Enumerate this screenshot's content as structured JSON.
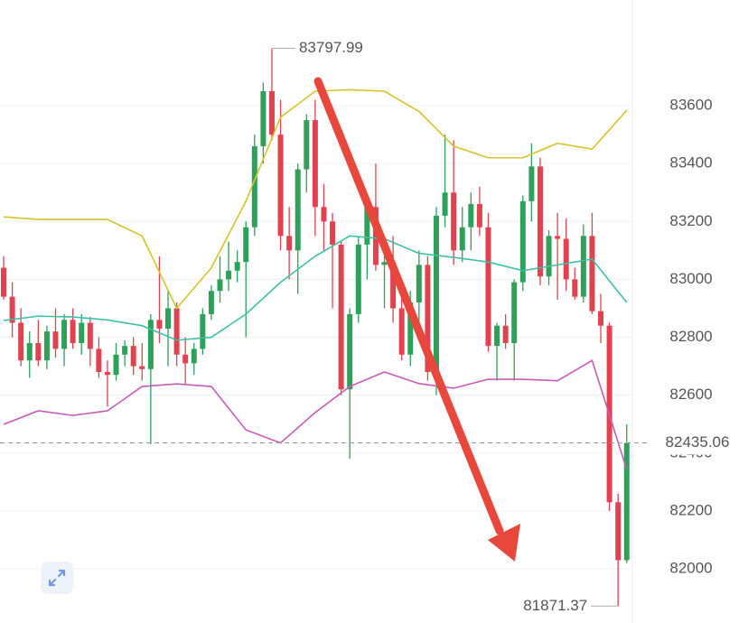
{
  "chart_data": {
    "type": "candlestick",
    "ylim": [
      81813,
      83965
    ],
    "yticks": [
      82000,
      82200,
      82400,
      82600,
      82800,
      83000,
      83200,
      83400,
      83600
    ],
    "grid": true,
    "up_color": "#2ea05a",
    "down_color": "#e0434f",
    "open": [
      83040,
      82940,
      82850,
      82720,
      82780,
      82720,
      82820,
      82760,
      82860,
      82780,
      82850,
      82760,
      82680,
      82670,
      82740,
      82770,
      82700,
      82690,
      82860,
      82830,
      82900,
      82740,
      82710,
      82760,
      82880,
      82960,
      83000,
      83030,
      83060,
      83180,
      83460,
      83650,
      83500,
      83150,
      83100,
      83380,
      83550,
      83250,
      83200,
      83120,
      82620,
      82880,
      83120,
      83250,
      83050,
      83060,
      82900,
      82740,
      82920,
      83050,
      82680,
      83220,
      83300,
      83100,
      83180,
      83260,
      83180,
      82770,
      82840,
      82780,
      82990,
      83270,
      83390,
      83010,
      83150,
      83140,
      83000,
      82940,
      83150,
      82890,
      82840,
      82230,
      82030
    ],
    "high": [
      83080,
      82990,
      82900,
      82820,
      82860,
      82840,
      82900,
      82880,
      82900,
      82880,
      82870,
      82800,
      82720,
      82780,
      82790,
      82800,
      82780,
      82880,
      83080,
      82960,
      82920,
      82800,
      82780,
      82900,
      82980,
      83080,
      83130,
      83100,
      83200,
      83500,
      83680,
      83797.99,
      83620,
      83250,
      83400,
      83570,
      83620,
      83330,
      83230,
      83130,
      82900,
      83150,
      83280,
      83400,
      83130,
      83150,
      82950,
      82960,
      83100,
      83080,
      83250,
      83500,
      83480,
      83250,
      83300,
      83320,
      83230,
      82850,
      82880,
      83000,
      83290,
      83470,
      83420,
      83170,
      83230,
      83210,
      83040,
      83190,
      83230,
      82950,
      82850,
      82260,
      82500
    ],
    "low": [
      82930,
      82800,
      82700,
      82660,
      82700,
      82690,
      82730,
      82700,
      82760,
      82740,
      82700,
      82660,
      82560,
      82650,
      82700,
      82670,
      82650,
      82430,
      82780,
      82700,
      82700,
      82640,
      82670,
      82740,
      82860,
      82920,
      82960,
      82990,
      82800,
      83150,
      83400,
      83480,
      83100,
      83000,
      82950,
      83300,
      83150,
      83100,
      82900,
      82600,
      82380,
      82850,
      83000,
      83030,
      82900,
      82850,
      82720,
      82700,
      82850,
      82650,
      82600,
      83180,
      83050,
      83060,
      83100,
      83150,
      82750,
      82650,
      82760,
      82650,
      82960,
      83200,
      82980,
      82980,
      82930,
      82960,
      82930,
      82920,
      82880,
      82780,
      82200,
      81871.37,
      82020
    ],
    "close": [
      82940,
      82850,
      82720,
      82780,
      82720,
      82820,
      82760,
      82860,
      82780,
      82850,
      82760,
      82680,
      82670,
      82740,
      82770,
      82700,
      82690,
      82860,
      82830,
      82900,
      82740,
      82710,
      82760,
      82880,
      82960,
      83000,
      83030,
      83060,
      83180,
      83460,
      83650,
      83500,
      83150,
      83100,
      83380,
      83550,
      83250,
      83200,
      83120,
      82620,
      82880,
      83120,
      83250,
      83050,
      83060,
      82900,
      82740,
      82920,
      83050,
      82680,
      83220,
      83300,
      83100,
      83180,
      83260,
      83180,
      82770,
      82840,
      82780,
      82990,
      83270,
      83390,
      83010,
      83150,
      83140,
      83000,
      82940,
      83150,
      82890,
      82840,
      82230,
      82030,
      82435
    ],
    "indicators": [
      {
        "color": "#d8c22a",
        "x": [
          0,
          4,
          8,
          12,
          16,
          20,
          24,
          28,
          32,
          36,
          40,
          44,
          48,
          52,
          56,
          60,
          64,
          68,
          72
        ],
        "values": [
          83216,
          83207,
          83207,
          83207,
          83150,
          82900,
          83040,
          83270,
          83560,
          83650,
          83655,
          83650,
          83580,
          83460,
          83420,
          83420,
          83470,
          83450,
          83584
        ]
      },
      {
        "color": "#3fbfa6",
        "x": [
          0,
          4,
          8,
          12,
          16,
          20,
          24,
          28,
          32,
          36,
          40,
          44,
          48,
          52,
          56,
          60,
          64,
          68,
          72
        ],
        "values": [
          82858,
          82873,
          82870,
          82860,
          82840,
          82790,
          82800,
          82880,
          82990,
          83080,
          83150,
          83140,
          83090,
          83076,
          83060,
          83030,
          83050,
          83070,
          82920
        ]
      },
      {
        "color": "#c75bb8",
        "x": [
          0,
          4,
          8,
          12,
          16,
          20,
          24,
          28,
          32,
          36,
          40,
          44,
          48,
          52,
          56,
          60,
          64,
          68,
          72
        ],
        "values": [
          82499,
          82546,
          82530,
          82546,
          82630,
          82639,
          82630,
          82480,
          82435,
          82540,
          82630,
          82680,
          82640,
          82624,
          82655,
          82655,
          82650,
          82720,
          82343
        ]
      }
    ],
    "last_price": 82435.06
  }
}
